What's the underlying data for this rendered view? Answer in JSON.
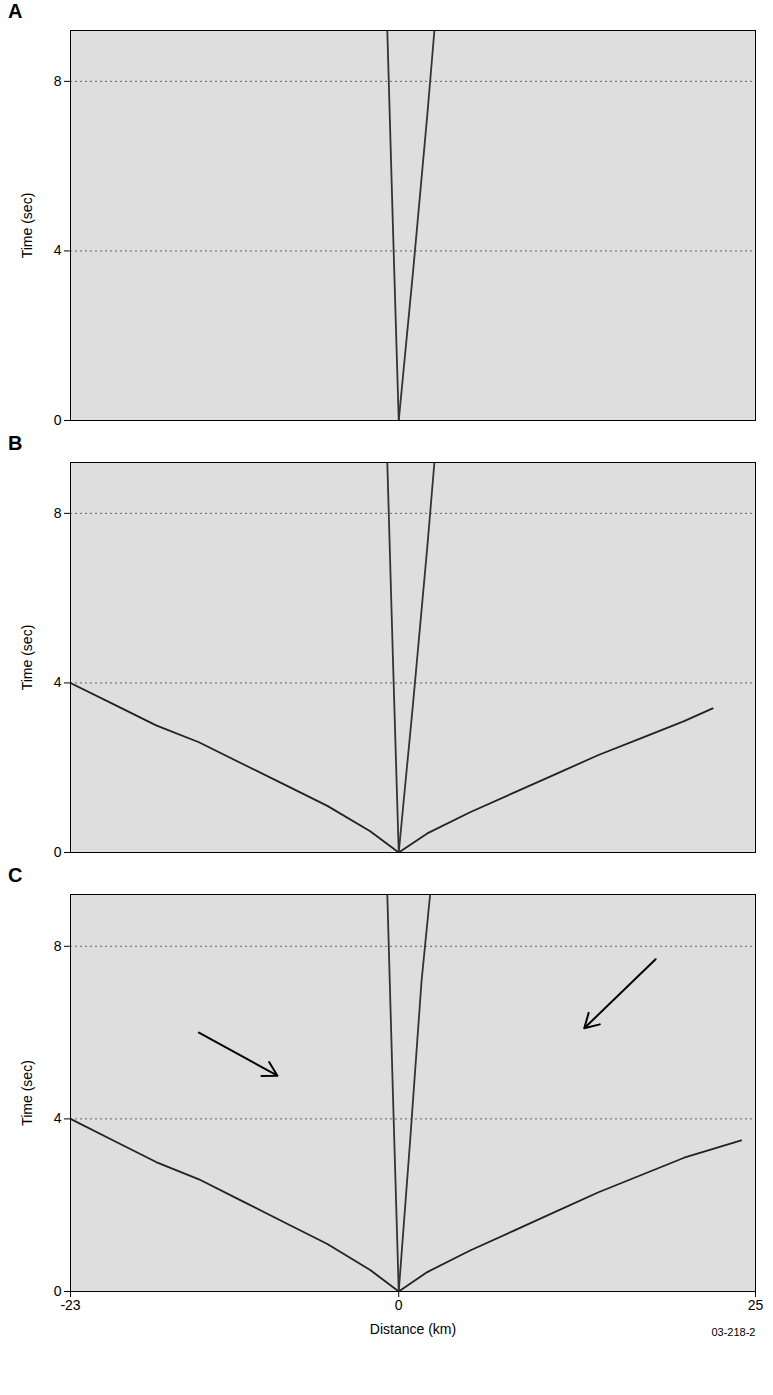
{
  "chart_data": [
    {
      "type": "line",
      "title": "A",
      "ylabel": "Time (sec)",
      "xlim": [
        -23,
        25
      ],
      "ylim": [
        0,
        9.2
      ],
      "yticks": [
        0,
        4,
        8
      ],
      "grid": true,
      "tick_labels": "y",
      "series": [
        {
          "color": "#333333",
          "x": [
            0,
            1,
            2,
            2.5
          ],
          "values": [
            0,
            3.5,
            7.2,
            9.2
          ]
        },
        {
          "color": "#333333",
          "x": [
            0,
            -0.4,
            -0.8
          ],
          "values": [
            0,
            4.5,
            9.2
          ]
        }
      ]
    },
    {
      "type": "line",
      "title": "B",
      "ylabel": "Time (sec)",
      "xlim": [
        -23,
        25
      ],
      "ylim": [
        0,
        9.2
      ],
      "yticks": [
        0,
        4,
        8
      ],
      "grid": true,
      "tick_labels": "y",
      "series": [
        {
          "color": "#222222",
          "x": [
            0,
            -2,
            -5,
            -8,
            -11,
            -14,
            -17,
            -20,
            -23
          ],
          "values": [
            0,
            0.5,
            1.1,
            1.6,
            2.1,
            2.6,
            3.0,
            3.5,
            4.0
          ]
        },
        {
          "color": "#222222",
          "x": [
            0,
            2,
            5,
            8,
            11,
            14,
            17,
            20,
            22
          ],
          "values": [
            0,
            0.45,
            0.95,
            1.4,
            1.85,
            2.3,
            2.7,
            3.1,
            3.4
          ]
        },
        {
          "color": "#333333",
          "x": [
            0,
            1,
            2,
            2.5
          ],
          "values": [
            0,
            3.5,
            7.2,
            9.2
          ]
        },
        {
          "color": "#333333",
          "x": [
            0,
            -0.4,
            -0.8
          ],
          "values": [
            0,
            4.5,
            9.2
          ]
        }
      ]
    },
    {
      "type": "line",
      "title": "C",
      "ylabel": "Time (sec)",
      "xlabel": "Distance (km)",
      "caption": "03-218-2",
      "xlim": [
        -23,
        25
      ],
      "ylim": [
        0,
        9.2
      ],
      "xticks": [
        -23,
        0,
        25
      ],
      "yticks": [
        0,
        4,
        8
      ],
      "grid": true,
      "series": [
        {
          "color": "#222222",
          "x": [
            0,
            -2,
            -5,
            -8,
            -11,
            -14,
            -17,
            -20,
            -23
          ],
          "values": [
            0,
            0.5,
            1.1,
            1.6,
            2.1,
            2.6,
            3.0,
            3.5,
            4.0
          ]
        },
        {
          "color": "#222222",
          "x": [
            0,
            2,
            5,
            8,
            11,
            14,
            17,
            20,
            24
          ],
          "values": [
            0,
            0.45,
            0.95,
            1.4,
            1.85,
            2.3,
            2.7,
            3.1,
            3.5
          ]
        },
        {
          "color": "#333333",
          "x": [
            0,
            0.8,
            1.6,
            2.2
          ],
          "values": [
            0,
            3.5,
            7.2,
            9.2
          ]
        },
        {
          "color": "#333333",
          "x": [
            0,
            -0.4,
            -0.8
          ],
          "values": [
            0,
            4.5,
            9.2
          ]
        }
      ],
      "annotations": [
        {
          "type": "arrow",
          "x1": -14,
          "y1": 6.0,
          "x2": -8.5,
          "y2": 5.0
        },
        {
          "type": "arrow",
          "x1": 18,
          "y1": 7.7,
          "x2": 13,
          "y2": 6.1
        }
      ]
    }
  ]
}
